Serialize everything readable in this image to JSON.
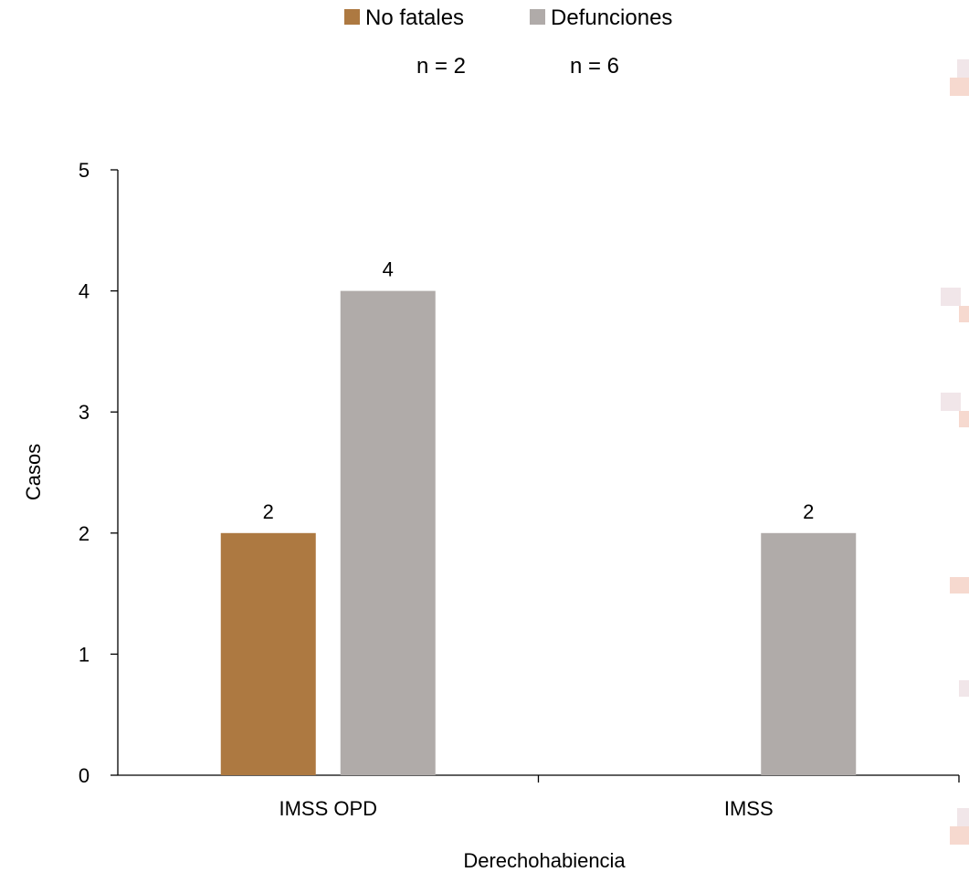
{
  "chart_data": {
    "type": "bar",
    "categories": [
      "IMSS OPD",
      "IMSS"
    ],
    "series": [
      {
        "name": "No fatales",
        "values": [
          2,
          0
        ],
        "color": "#ad7941",
        "n_label": "n = 2",
        "show_labels": [
          true,
          false
        ]
      },
      {
        "name": "Defunciones",
        "values": [
          4,
          2
        ],
        "color": "#b0aba9",
        "n_label": "n = 6",
        "show_labels": [
          true,
          true
        ]
      }
    ],
    "xlabel": "Derechohabiencia",
    "ylabel": "Casos",
    "ylim": [
      0,
      5
    ],
    "yticks": [
      0,
      1,
      2,
      3,
      4,
      5
    ],
    "grid": false,
    "legend_position": "top-center"
  }
}
